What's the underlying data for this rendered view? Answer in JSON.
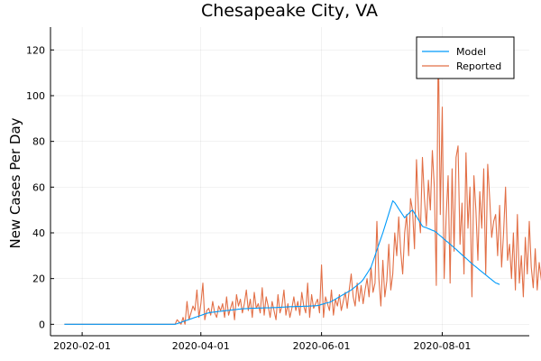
{
  "chart_data": {
    "type": "line",
    "title": "Chesapeake City, VA",
    "xlabel": "",
    "ylabel": "New Cases Per Day",
    "x_start": "2020-01-23",
    "x_range": [
      "2020-01-16",
      "2020-09-14"
    ],
    "ylim": [
      -5,
      130
    ],
    "x_ticks": [
      "2020-02-01",
      "2020-04-01",
      "2020-06-01",
      "2020-08-01"
    ],
    "y_ticks": [
      0,
      20,
      40,
      60,
      80,
      100,
      120
    ],
    "grid": true,
    "legend": "top-right",
    "series": [
      {
        "name": "Model",
        "color": "#009AFA",
        "values": [
          0,
          0,
          0,
          0,
          0,
          0,
          0,
          0,
          0,
          0,
          0,
          0,
          0,
          0,
          0,
          0,
          0,
          0,
          0,
          0,
          0,
          0,
          0,
          0,
          0,
          0,
          0,
          0,
          0,
          0,
          0,
          0,
          0,
          0,
          0,
          0,
          0,
          0,
          0,
          0,
          0,
          0,
          0,
          0,
          0,
          0,
          0,
          0,
          0,
          0,
          0,
          0,
          0,
          0,
          0,
          0,
          0,
          0.3,
          0.6,
          0.9,
          1.2,
          1.5,
          1.8,
          2.1,
          2.4,
          2.7,
          3,
          3.3,
          3.6,
          3.9,
          4.2,
          4.5,
          4.8,
          5,
          5.2,
          5.3,
          5.4,
          5.5,
          5.6,
          5.7,
          5.8,
          5.9,
          6,
          6.1,
          6.2,
          6.3,
          6.4,
          6.5,
          6.6,
          6.7,
          6.8,
          6.8,
          6.9,
          6.9,
          7,
          7,
          7,
          7,
          7.1,
          7.1,
          7.1,
          7.2,
          7.2,
          7.2,
          7.2,
          7.3,
          7.3,
          7.3,
          7.4,
          7.4,
          7.5,
          7.5,
          7.6,
          7.6,
          7.7,
          7.7,
          7.7,
          7.8,
          7.8,
          7.8,
          7.8,
          7.9,
          7.9,
          7.9,
          8,
          8,
          8.1,
          8.1,
          8.2,
          8.4,
          8.7,
          8.9,
          9.2,
          9.4,
          9.6,
          10,
          10.5,
          11,
          11.5,
          12,
          12.5,
          13,
          13.5,
          14,
          14.5,
          15,
          15.7,
          16.4,
          17.1,
          17.8,
          18.5,
          19.5,
          20.9,
          22.2,
          23.6,
          25,
          27.5,
          30,
          32.5,
          35,
          37.5,
          40,
          42.8,
          45.6,
          48.4,
          51.2,
          54,
          53.2,
          51.9,
          50.5,
          49.2,
          47.9,
          46.6,
          47.6,
          48.4,
          49.3,
          50,
          48.6,
          47.1,
          45.7,
          44.3,
          42.9,
          42.5,
          42.2,
          41.8,
          41.5,
          41.1,
          40.8,
          40.2,
          39.4,
          38.7,
          38,
          37.2,
          36.5,
          35.8,
          35,
          34.3,
          33.5,
          32.8,
          32,
          31.2,
          30.4,
          29.6,
          28.9,
          28.1,
          27.3,
          26.5,
          25.8,
          25.1,
          24.4,
          23.7,
          23,
          22.3,
          21.6,
          20.9,
          20.2,
          19.5,
          18.8,
          18.1,
          17.8,
          17.4
        ]
      },
      {
        "name": "Reported",
        "color": "#E26F46",
        "values": [
          0,
          0,
          0,
          0,
          0,
          0,
          0,
          0,
          0,
          0,
          0,
          0,
          0,
          0,
          0,
          0,
          0,
          0,
          0,
          0,
          0,
          0,
          0,
          0,
          0,
          0,
          0,
          0,
          0,
          0,
          0,
          0,
          0,
          0,
          0,
          0,
          0,
          0,
          0,
          0,
          0,
          0,
          0,
          0,
          0,
          0,
          0,
          0,
          0,
          0,
          0,
          0,
          0,
          0,
          0,
          0,
          0,
          2,
          1,
          0,
          3,
          0,
          10,
          2,
          5,
          8,
          6,
          15,
          3,
          9,
          18,
          2,
          6,
          7,
          4,
          10,
          5,
          3,
          8,
          6,
          9,
          3,
          12,
          4,
          7,
          10,
          2,
          13,
          8,
          11,
          5,
          9,
          15,
          6,
          11,
          3,
          14,
          7,
          9,
          5,
          16,
          4,
          12,
          8,
          3,
          10,
          6,
          2,
          13,
          5,
          8,
          15,
          4,
          9,
          3,
          7,
          12,
          6,
          10,
          4,
          14,
          8,
          5,
          18,
          3,
          13,
          7,
          9,
          11,
          5,
          26,
          3,
          12,
          9,
          6,
          15,
          4,
          11,
          8,
          13,
          6,
          10,
          14,
          7,
          15,
          22,
          12,
          8,
          18,
          10,
          17,
          9,
          15,
          20,
          12,
          25,
          14,
          18,
          45,
          20,
          8,
          28,
          12,
          19,
          35,
          15,
          22,
          40,
          30,
          47,
          32,
          22,
          40,
          48,
          30,
          55,
          50,
          33,
          72,
          50,
          40,
          73,
          55,
          43,
          63,
          50,
          76,
          60,
          17,
          125,
          48,
          95,
          20,
          47,
          65,
          18,
          68,
          32,
          73,
          78,
          35,
          53,
          22,
          75,
          42,
          60,
          12,
          65,
          50,
          28,
          58,
          42,
          68,
          22,
          70,
          55,
          38,
          45,
          48,
          30,
          52,
          25,
          40,
          60,
          28,
          35,
          20,
          40,
          15,
          48,
          18,
          30,
          12,
          38,
          22,
          45,
          25,
          16,
          33,
          15,
          27,
          20,
          13,
          24,
          17,
          25,
          20,
          18,
          22,
          10,
          23,
          21,
          28,
          15,
          14
        ]
      }
    ]
  }
}
